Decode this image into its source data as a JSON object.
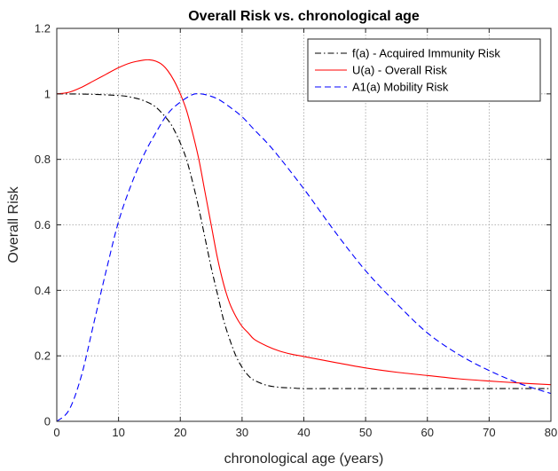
{
  "chart_data": {
    "type": "line",
    "title": "Overall Risk vs. chronological age",
    "xlabel": "chronological age (years)",
    "ylabel": "Overall Risk",
    "xlim": [
      0,
      80
    ],
    "ylim": [
      0,
      1.2
    ],
    "xticks": [
      0,
      10,
      20,
      30,
      40,
      50,
      60,
      70,
      80
    ],
    "yticks": [
      0,
      0.2,
      0.4,
      0.6,
      0.8,
      1,
      1.2
    ],
    "xtick_labels": [
      "0",
      "10",
      "20",
      "30",
      "40",
      "50",
      "60",
      "70",
      "80"
    ],
    "ytick_labels": [
      "0",
      "0.2",
      "0.4",
      "0.6",
      "0.8",
      "1",
      "1.2"
    ],
    "grid": true,
    "legend_position": "top-right",
    "series": [
      {
        "name": "f(a) - Acquired Immunity Risk",
        "color": "#000000",
        "line_style": "dash-dot",
        "x": [
          0,
          5,
          10,
          12,
          14,
          16,
          18,
          19,
          20,
          21,
          22,
          23,
          24,
          25,
          26,
          27,
          28,
          29,
          30,
          31,
          32,
          34,
          36,
          38,
          40,
          45,
          50,
          60,
          70,
          80
        ],
        "y": [
          1.0,
          0.999,
          0.995,
          0.99,
          0.98,
          0.96,
          0.92,
          0.89,
          0.85,
          0.8,
          0.73,
          0.65,
          0.56,
          0.47,
          0.39,
          0.31,
          0.25,
          0.2,
          0.165,
          0.14,
          0.125,
          0.11,
          0.104,
          0.102,
          0.1,
          0.1,
          0.1,
          0.1,
          0.1,
          0.1
        ]
      },
      {
        "name": "U(a) - Overall Risk",
        "color": "#ff0000",
        "line_style": "solid",
        "x": [
          0,
          2,
          4,
          6,
          8,
          10,
          12,
          14,
          15,
          16,
          17,
          18,
          19,
          20,
          21,
          22,
          23,
          24,
          25,
          26,
          27,
          28,
          29,
          30,
          31,
          32,
          34,
          36,
          38,
          40,
          45,
          50,
          55,
          60,
          65,
          70,
          75,
          80
        ],
        "y": [
          1.0,
          1.005,
          1.02,
          1.04,
          1.06,
          1.08,
          1.095,
          1.103,
          1.104,
          1.1,
          1.09,
          1.07,
          1.04,
          1.0,
          0.95,
          0.88,
          0.8,
          0.7,
          0.6,
          0.5,
          0.42,
          0.36,
          0.32,
          0.29,
          0.27,
          0.25,
          0.23,
          0.215,
          0.205,
          0.198,
          0.18,
          0.163,
          0.15,
          0.14,
          0.13,
          0.123,
          0.117,
          0.112
        ]
      },
      {
        "name": "A1(a) Mobility Risk",
        "color": "#0000ff",
        "line_style": "dashed",
        "x": [
          0,
          2,
          4,
          6,
          8,
          10,
          12,
          14,
          16,
          18,
          20,
          22,
          23,
          24,
          26,
          28,
          30,
          32,
          35,
          40,
          45,
          50,
          55,
          60,
          65,
          70,
          75,
          80
        ],
        "y": [
          0.0,
          0.035,
          0.14,
          0.3,
          0.46,
          0.61,
          0.72,
          0.81,
          0.88,
          0.94,
          0.975,
          0.998,
          1.0,
          0.998,
          0.985,
          0.96,
          0.93,
          0.89,
          0.83,
          0.71,
          0.58,
          0.46,
          0.36,
          0.27,
          0.205,
          0.155,
          0.115,
          0.085
        ]
      }
    ]
  }
}
